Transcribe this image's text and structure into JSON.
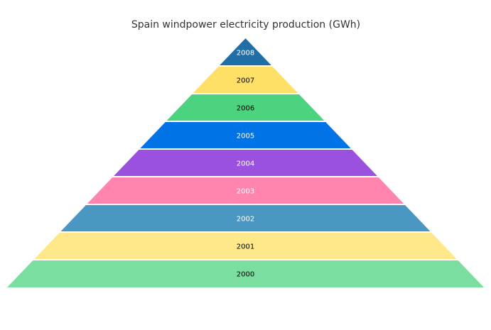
{
  "chart_data": {
    "type": "pyramid",
    "title": "Spain windpower electricity production (GWh)",
    "categories": [
      "2008",
      "2007",
      "2006",
      "2005",
      "2004",
      "2003",
      "2002",
      "2001",
      "2000"
    ],
    "colors": [
      "#1f6fa6",
      "#ffe066",
      "#4cd37f",
      "#0073e6",
      "#9b51e0",
      "#ff85ae",
      "#4b97c3",
      "#ffe88a",
      "#79dea0"
    ],
    "label_colors": [
      "#ffffff",
      "#000000",
      "#000000",
      "#ffffff",
      "#ffffff",
      "#ffffff",
      "#ffffff",
      "#000000",
      "#000000"
    ]
  }
}
